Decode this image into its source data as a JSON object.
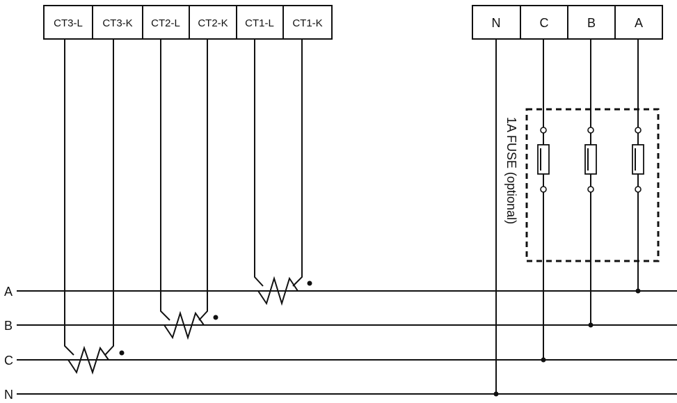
{
  "ct_terminals": [
    "CT3-L",
    "CT3-K",
    "CT2-L",
    "CT2-K",
    "CT1-L",
    "CT1-K"
  ],
  "voltage_terminals": [
    "N",
    "C",
    "B",
    "A"
  ],
  "lines": [
    "A",
    "B",
    "C",
    "N"
  ],
  "fuse_label": "1A FUSE (optional)",
  "colors": {
    "ink": "#111111",
    "background": "#ffffff"
  }
}
